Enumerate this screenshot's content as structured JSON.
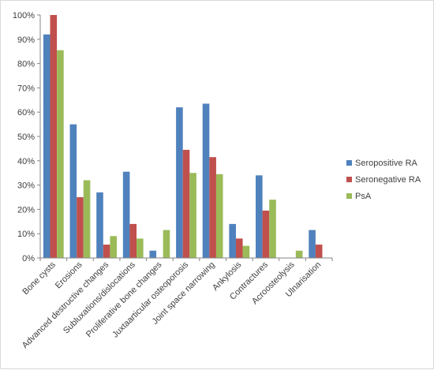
{
  "chart_data": {
    "type": "bar",
    "categories": [
      "Bone cysts",
      "Erosions",
      "Advanced destructive changes",
      "Subluxations/dislocations",
      "Proliferative bone changes",
      "Juxtaarticular osteoporosis",
      "Joint space narrowing",
      "Ankylosis",
      "Contractures",
      "Acroosteolysis",
      "Ulnarisation"
    ],
    "series": [
      {
        "name": "Seropositive RA",
        "color": "#4f81bd",
        "values": [
          92,
          55,
          27,
          35.5,
          3,
          62,
          63.5,
          14,
          34,
          0,
          11.5
        ]
      },
      {
        "name": "Seronegative RA",
        "color": "#c0504d",
        "values": [
          100,
          25,
          5.5,
          14,
          0,
          44.5,
          41.5,
          8,
          19.5,
          0,
          5.5
        ]
      },
      {
        "name": "PsA",
        "color": "#9bbb59",
        "values": [
          85.5,
          32,
          9,
          8,
          11.5,
          35,
          34.5,
          5,
          24,
          3,
          0
        ]
      }
    ],
    "ylim": [
      0,
      100
    ],
    "yticks": [
      "0%",
      "10%",
      "20%",
      "30%",
      "40%",
      "50%",
      "60%",
      "70%",
      "80%",
      "90%",
      "100%"
    ],
    "grid": false,
    "legend_position": "right"
  }
}
